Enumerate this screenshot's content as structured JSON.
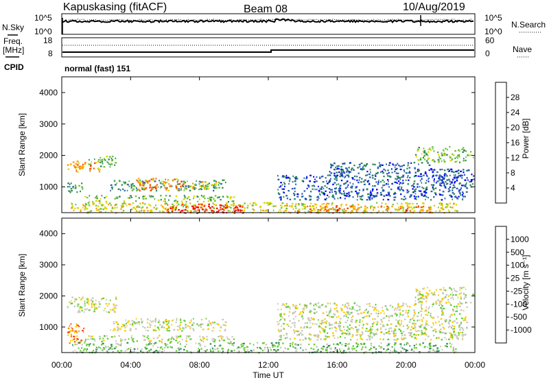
{
  "header": {
    "station": "Kapuskasing (fitACF)",
    "beam": "Beam 08",
    "date": "10/Aug/2019"
  },
  "noise_panel": {
    "left_label": "N.Sky",
    "right_label": "N.Search",
    "left_ticks": [
      "10^5",
      "10^0"
    ],
    "right_ticks": [
      "10^5",
      "10^0"
    ]
  },
  "freq_panel": {
    "left_label_1": "Freq.",
    "left_label_2": "[MHz]",
    "cpid_label": "CPID",
    "right_label": "Nave",
    "left_ticks": [
      "18",
      "8"
    ],
    "right_ticks": [
      "60",
      "0"
    ],
    "program": "normal (fast) 151"
  },
  "chart_data": [
    {
      "type": "heatmap",
      "name": "power",
      "ylabel": "Slant Range [km]",
      "xlabel": "",
      "ylim": [
        180,
        4500
      ],
      "xlim": [
        0,
        24
      ],
      "yticks": [
        "1000",
        "2000",
        "3000",
        "4000"
      ],
      "colorbar": {
        "label": "Power [dB]",
        "ticks": [
          "4",
          "8",
          "12",
          "16",
          "20",
          "24",
          "28"
        ],
        "colors": [
          "#0000ff",
          "#2b5faf",
          "#2e8b57",
          "#66c23a",
          "#d8d800",
          "#ff9900",
          "#ff4500",
          "#ff0000"
        ]
      },
      "regions": [
        {
          "t0": 0.3,
          "t1": 2.2,
          "r0": 1500,
          "r1": 1850,
          "level": 5
        },
        {
          "t0": 1.5,
          "t1": 3.2,
          "r0": 1650,
          "r1": 2000,
          "level": 3
        },
        {
          "t0": 0.3,
          "t1": 1.3,
          "r0": 850,
          "r1": 1150,
          "level": 2
        },
        {
          "t0": 2.8,
          "t1": 9.5,
          "r0": 900,
          "r1": 1250,
          "level": 2
        },
        {
          "t0": 4.2,
          "t1": 7.0,
          "r0": 900,
          "r1": 1300,
          "level": 5
        },
        {
          "t0": 7.0,
          "t1": 9.0,
          "r0": 950,
          "r1": 1200,
          "level": 4
        },
        {
          "t0": 1.2,
          "t1": 10.0,
          "r0": 550,
          "r1": 750,
          "level": 3
        },
        {
          "t0": 0.5,
          "t1": 23.0,
          "r0": 190,
          "r1": 520,
          "level": 4
        },
        {
          "t0": 6.0,
          "t1": 10.5,
          "r0": 190,
          "r1": 480,
          "level": 7
        },
        {
          "t0": 13.0,
          "t1": 21.5,
          "r0": 190,
          "r1": 420,
          "level": 5
        },
        {
          "t0": 12.5,
          "t1": 23.5,
          "r0": 600,
          "r1": 1400,
          "level": 1
        },
        {
          "t0": 15.5,
          "t1": 21.5,
          "r0": 1350,
          "r1": 1800,
          "level": 1
        },
        {
          "t0": 20.5,
          "t1": 23.9,
          "r0": 1800,
          "r1": 2300,
          "level": 3
        },
        {
          "t0": 21.5,
          "t1": 23.9,
          "r0": 1000,
          "r1": 1600,
          "level": 1
        }
      ]
    },
    {
      "type": "heatmap",
      "name": "velocity",
      "ylabel": "Slant Range [km]",
      "xlabel": "Time UT",
      "ylim": [
        180,
        4500
      ],
      "xlim": [
        0,
        24
      ],
      "yticks": [
        "1000",
        "2000",
        "3000",
        "4000"
      ],
      "xticks": [
        "00:00",
        "04:00",
        "08:00",
        "12:00",
        "16:00",
        "20:00",
        "00:00"
      ],
      "colorbar": {
        "label": "Velocity [m s⁻¹]",
        "ticks": [
          "1000",
          "500",
          "100",
          "25",
          "-25",
          "-100",
          "-500",
          "-1000"
        ],
        "colors": [
          "#1f3fb0",
          "#2f6faf",
          "#2e8b57",
          "#66cc33",
          "#c8c8c0",
          "#ffcc00",
          "#ff8800",
          "#ff4400",
          "#ff0000"
        ]
      },
      "regions": [
        {
          "t0": 0.3,
          "t1": 3.2,
          "r0": 1500,
          "r1": 2000,
          "level": 4
        },
        {
          "t0": 0.3,
          "t1": 1.3,
          "r0": 500,
          "r1": 1150,
          "level": 6
        },
        {
          "t0": 2.8,
          "t1": 9.5,
          "r0": 900,
          "r1": 1300,
          "level": 4
        },
        {
          "t0": 1.2,
          "t1": 10.0,
          "r0": 550,
          "r1": 750,
          "level": 4
        },
        {
          "t0": 0.5,
          "t1": 23.0,
          "r0": 190,
          "r1": 520,
          "level": 3
        },
        {
          "t0": 12.5,
          "t1": 23.5,
          "r0": 600,
          "r1": 1800,
          "level": 4
        },
        {
          "t0": 20.5,
          "t1": 23.9,
          "r0": 1800,
          "r1": 2300,
          "level": 4
        }
      ]
    }
  ]
}
